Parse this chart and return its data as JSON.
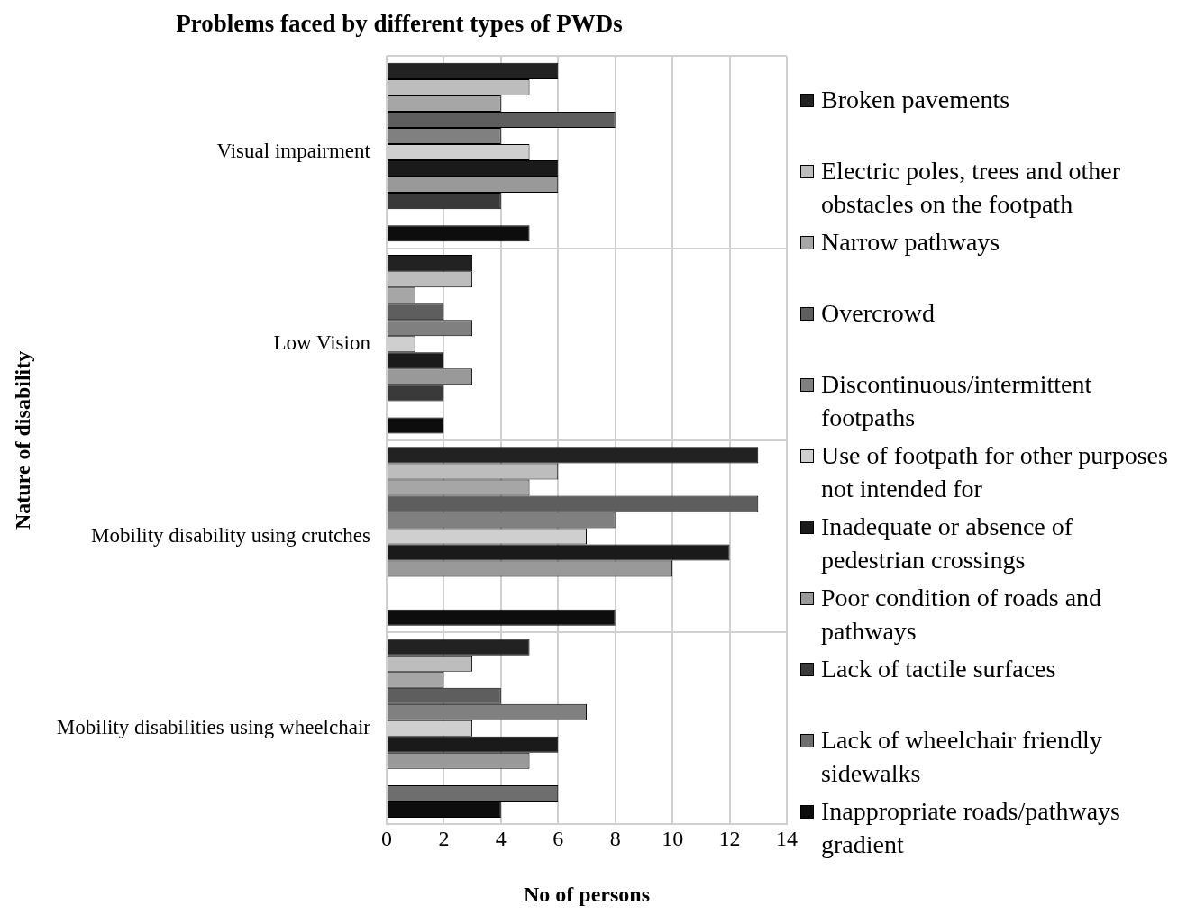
{
  "chart_data": {
    "type": "bar",
    "orientation": "horizontal",
    "title": "Problems faced by different types of PWDs",
    "xlabel": "No of persons",
    "ylabel": "Nature of disability",
    "categories": [
      "Visual impairment",
      "Low Vision",
      "Mobility disability using crutches",
      "Mobility disabilities using wheelchair"
    ],
    "xlim": [
      0,
      14
    ],
    "xticks": [
      0,
      2,
      4,
      6,
      8,
      10,
      12,
      14
    ],
    "grid": true,
    "legend": "right",
    "series": [
      {
        "name": "Broken pavements",
        "color": "#222222",
        "values": [
          6,
          3,
          13,
          5
        ]
      },
      {
        "name": "Electric poles, trees and other obstacles on the footpath",
        "color": "#bdbdbd",
        "values": [
          5,
          3,
          6,
          3
        ]
      },
      {
        "name": "Narrow pathways",
        "color": "#a6a6a6",
        "values": [
          4,
          1,
          5,
          2
        ]
      },
      {
        "name": "Overcrowd",
        "color": "#5e5e5e",
        "values": [
          8,
          2,
          13,
          4
        ]
      },
      {
        "name": "Discontinuous/intermittent footpaths",
        "color": "#808080",
        "values": [
          4,
          3,
          8,
          7
        ]
      },
      {
        "name": "Use of footpath for other purposes not intended for",
        "color": "#cfcfcf",
        "values": [
          5,
          1,
          7,
          3
        ]
      },
      {
        "name": "Inadequate or absence of pedestrian crossings",
        "color": "#1a1a1a",
        "values": [
          6,
          2,
          12,
          6
        ]
      },
      {
        "name": "Poor condition of roads and pathways",
        "color": "#999999",
        "values": [
          6,
          3,
          10,
          5
        ]
      },
      {
        "name": "Lack of tactile surfaces",
        "color": "#3a3a3a",
        "values": [
          4,
          2,
          0,
          0
        ]
      },
      {
        "name": "Lack of wheelchair friendly sidewalks",
        "color": "#6e6e6e",
        "values": [
          0,
          0,
          0,
          6
        ]
      },
      {
        "name": "Inappropriate roads/pathways gradient",
        "color": "#0d0d0d",
        "values": [
          5,
          2,
          8,
          4
        ]
      }
    ]
  }
}
